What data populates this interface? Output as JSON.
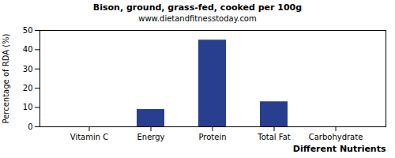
{
  "chart_data": {
    "type": "bar",
    "title": "Bison, ground, grass-fed, cooked per 100g",
    "subtitle": "www.dietandfitnesstoday.com",
    "x_label": "Different Nutrients",
    "y_label": "Percentage of RDA (%)",
    "categories": [
      "Vitamin C",
      "Energy",
      "Protein",
      "Total Fat",
      "Carbohydrate"
    ],
    "values": [
      0,
      9,
      45,
      13,
      0
    ],
    "color": "#283f8f",
    "ylim": [
      0,
      50
    ],
    "yticks": [
      0,
      10,
      20,
      30,
      40,
      50
    ],
    "grid": false
  }
}
